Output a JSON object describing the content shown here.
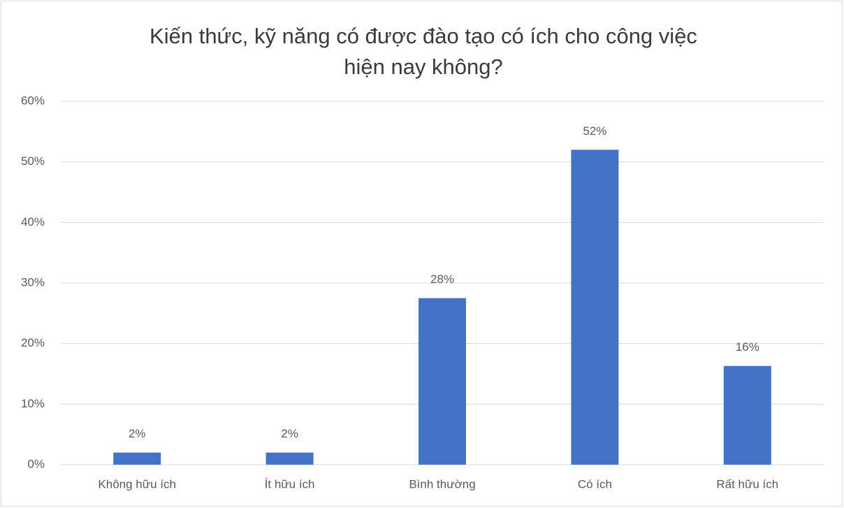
{
  "chart_data": {
    "type": "bar",
    "title": [
      "Kiến thức, kỹ năng có được đào tạo có ích cho công việc",
      "hiện nay không?"
    ],
    "categories": [
      "Không hữu ích",
      "Ít hữu ích",
      "Bình thường",
      "Có ích",
      "Rất hữu ích"
    ],
    "values": [
      2,
      2,
      27.5,
      52,
      16.3
    ],
    "value_labels": [
      "2%",
      "2%",
      "28%",
      "52%",
      "16%"
    ],
    "color": "#4472c4",
    "ylim": [
      0,
      60
    ],
    "yticks": [
      {
        "value": 0,
        "label": "0%"
      },
      {
        "value": 10,
        "label": "10%"
      },
      {
        "value": 20,
        "label": "20%"
      },
      {
        "value": 30,
        "label": "30%"
      },
      {
        "value": 40,
        "label": "40%"
      },
      {
        "value": 50,
        "label": "50%"
      },
      {
        "value": 60,
        "label": "60%"
      }
    ],
    "grid": true
  }
}
